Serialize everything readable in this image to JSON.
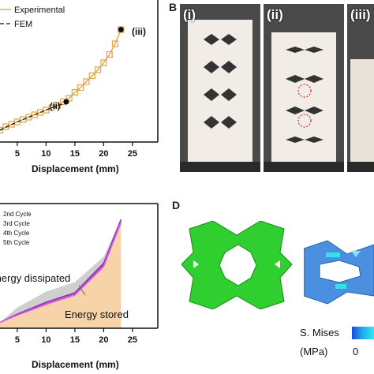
{
  "panels": {
    "A": {
      "legend": [
        "Experimental",
        "FEM"
      ],
      "markers": [
        "(ii)",
        "(iii)"
      ],
      "xlabel": "Displacement (mm)",
      "xticks": [
        "5",
        "10",
        "15",
        "20",
        "25"
      ]
    },
    "B": {
      "letter": "B",
      "photos": [
        "(i)",
        "(ii)",
        "(iii)"
      ]
    },
    "C": {
      "legend": [
        "2nd Cycle",
        "3rd Cycle",
        "4th Cycle",
        "5th Cycle"
      ],
      "annotations": [
        "Energy dissipated",
        "Energy stored"
      ],
      "xlabel": "Displacement (mm)",
      "xticks": [
        "5",
        "10",
        "15",
        "20",
        "25"
      ]
    },
    "D": {
      "letter": "D",
      "colorbar_label_1": "S. Mises",
      "colorbar_label_2": "(MPa)",
      "colorbar_zero": "0"
    }
  },
  "chart_data": [
    {
      "type": "line",
      "xlabel": "Displacement (mm)",
      "xlim": [
        2,
        28
      ],
      "series": [
        {
          "name": "Experimental",
          "x": [
            2,
            3,
            4,
            5,
            6,
            7,
            8,
            9,
            10,
            11,
            12,
            13,
            14,
            15,
            16,
            17,
            18,
            19,
            20,
            21,
            22,
            23
          ],
          "y": [
            0.1,
            0.13,
            0.15,
            0.17,
            0.19,
            0.21,
            0.23,
            0.25,
            0.27,
            0.29,
            0.31,
            0.34,
            0.37,
            0.42,
            0.46,
            0.51,
            0.56,
            0.61,
            0.67,
            0.74,
            0.83,
            0.95
          ]
        },
        {
          "name": "FEM",
          "x": [
            2,
            5,
            8,
            11,
            14
          ],
          "y": [
            0.1,
            0.17,
            0.23,
            0.29,
            0.34
          ]
        }
      ],
      "markers": [
        {
          "label": "(ii)",
          "x": 13.5,
          "y": 0.34
        },
        {
          "label": "(iii)",
          "x": 23,
          "y": 0.95
        }
      ]
    },
    {
      "type": "line",
      "xlabel": "Displacement (mm)",
      "xlim": [
        2,
        28
      ],
      "series": [
        {
          "name": "2nd Cycle",
          "x": [
            2,
            5,
            10,
            15,
            20,
            23
          ],
          "y": [
            0.05,
            0.12,
            0.22,
            0.3,
            0.55,
            0.92
          ]
        },
        {
          "name": "3rd Cycle",
          "x": [
            2,
            5,
            10,
            15,
            20,
            23
          ],
          "y": [
            0.05,
            0.12,
            0.21,
            0.29,
            0.54,
            0.91
          ]
        },
        {
          "name": "4th Cycle",
          "x": [
            2,
            5,
            10,
            15,
            20,
            23
          ],
          "y": [
            0.05,
            0.11,
            0.21,
            0.29,
            0.53,
            0.9
          ]
        },
        {
          "name": "5th Cycle",
          "x": [
            2,
            5,
            10,
            15,
            20,
            23
          ],
          "y": [
            0.05,
            0.11,
            0.2,
            0.28,
            0.52,
            0.89
          ]
        }
      ]
    }
  ]
}
